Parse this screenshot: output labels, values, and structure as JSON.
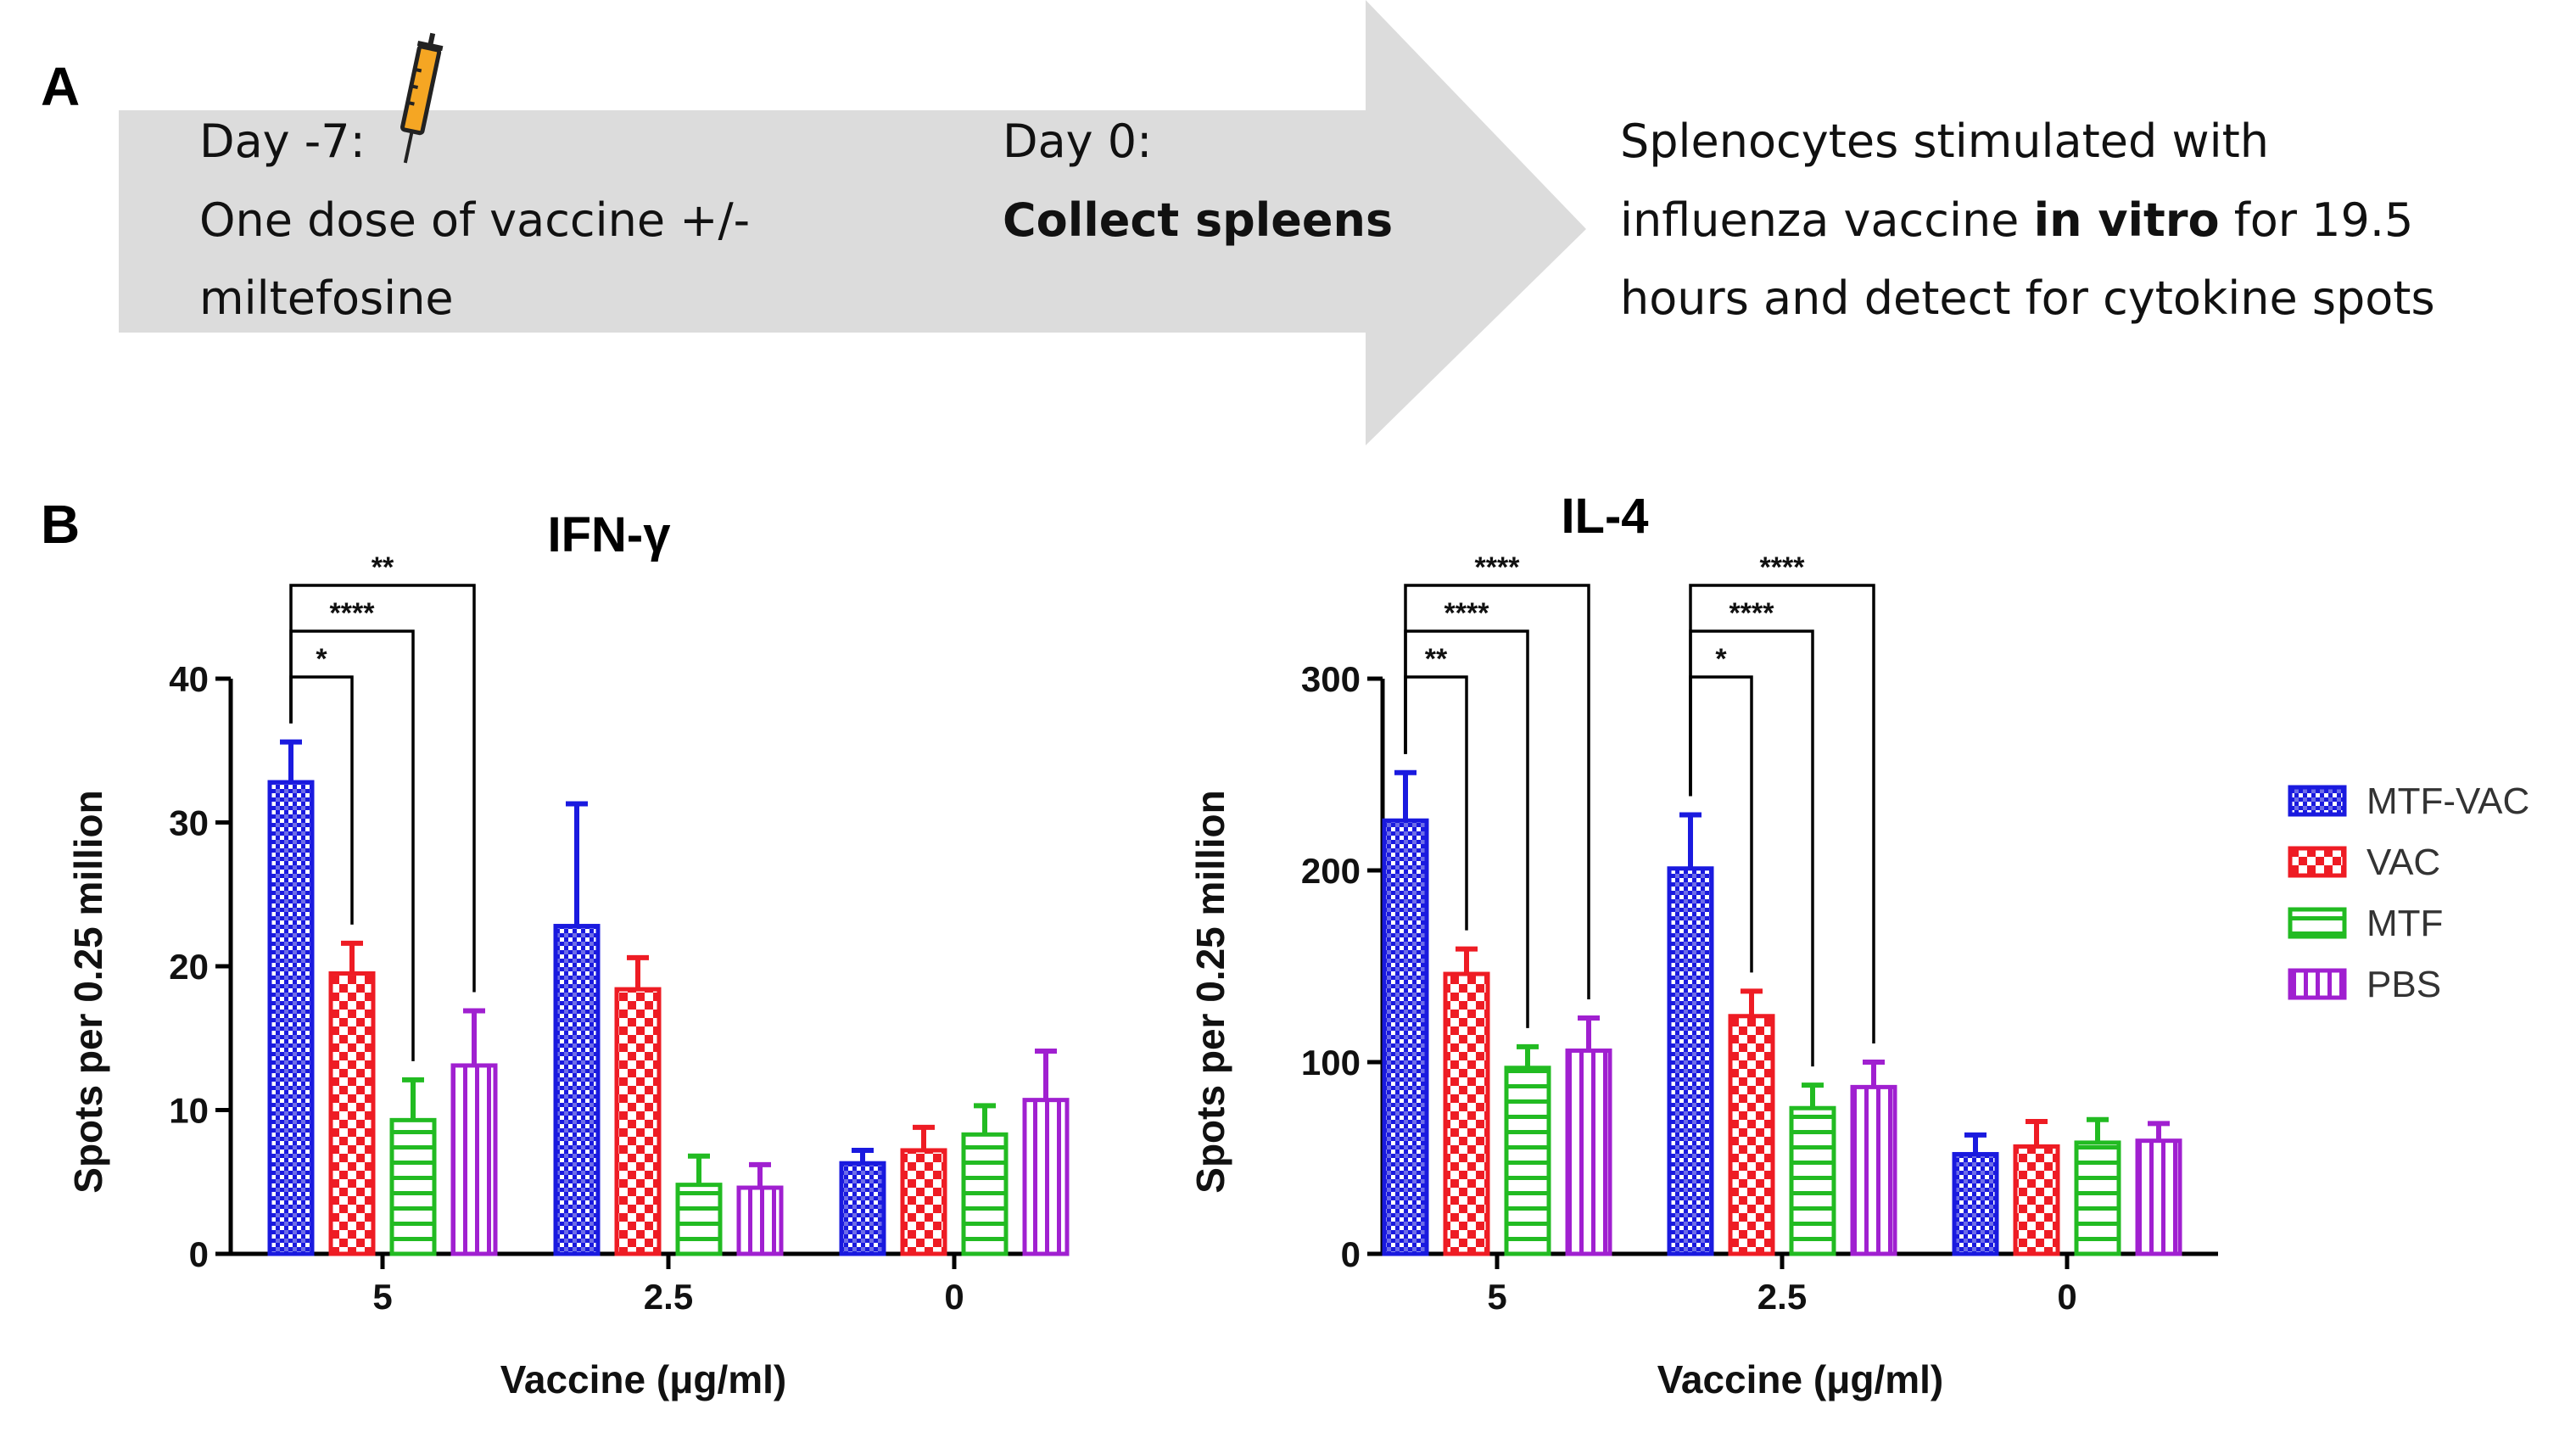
{
  "panel_a": {
    "letter": "A",
    "step1_line1": "Day -7:",
    "step1_line2": "One dose of vaccine +/-",
    "step1_line3": "miltefosine",
    "step2_line1": "Day 0:",
    "step2_line2": "Collect spleens",
    "step3_line1": "Splenocytes stimulated with",
    "step3_line2_a": "influenza vaccine ",
    "step3_line2_b": "in vitro",
    "step3_line2_c": " for 19.5",
    "step3_line3": "hours and detect for cytokine spots",
    "syringe_icon": "syringe-icon"
  },
  "panel_b": {
    "letter": "B"
  },
  "legend": {
    "items": [
      {
        "label": "MTF-VAC",
        "color": "#1a1adf",
        "pattern": "dots"
      },
      {
        "label": "VAC",
        "color": "#ee1c24",
        "pattern": "checker"
      },
      {
        "label": "MTF",
        "color": "#22bb22",
        "pattern": "hstripes"
      },
      {
        "label": "PBS",
        "color": "#a020d0",
        "pattern": "vstripes"
      }
    ]
  },
  "chart_data": [
    {
      "type": "bar",
      "title": "IFN-γ",
      "xlabel": "Vaccine (μg/ml)",
      "ylabel": "Spots per 0.25 million",
      "categories": [
        "5",
        "2.5",
        "0"
      ],
      "ylim": [
        0,
        40
      ],
      "yticks": [
        0,
        10,
        20,
        30,
        40
      ],
      "series": [
        {
          "name": "MTF-VAC",
          "values": [
            32.8,
            22.8,
            6.3
          ],
          "errors": [
            2.8,
            8.5,
            0.9
          ]
        },
        {
          "name": "VAC",
          "values": [
            19.5,
            18.4,
            7.2
          ],
          "errors": [
            2.1,
            2.2,
            1.6
          ]
        },
        {
          "name": "MTF",
          "values": [
            9.3,
            4.8,
            8.3
          ],
          "errors": [
            2.8,
            2.0,
            2.0
          ]
        },
        {
          "name": "PBS",
          "values": [
            13.1,
            4.6,
            10.7
          ],
          "errors": [
            3.8,
            1.6,
            3.4
          ]
        }
      ],
      "significance": [
        {
          "category": 0,
          "from": 0,
          "to": 1,
          "label": "*"
        },
        {
          "category": 0,
          "from": 0,
          "to": 2,
          "label": "****"
        },
        {
          "category": 0,
          "from": 0,
          "to": 3,
          "label": "**"
        }
      ]
    },
    {
      "type": "bar",
      "title": "IL-4",
      "xlabel": "Vaccine (μg/ml)",
      "ylabel": "Spots per 0.25 million",
      "categories": [
        "5",
        "2.5",
        "0"
      ],
      "ylim": [
        0,
        300
      ],
      "yticks": [
        0,
        100,
        200,
        300
      ],
      "series": [
        {
          "name": "MTF-VAC",
          "values": [
            226,
            201,
            52
          ],
          "errors": [
            25,
            28,
            10
          ]
        },
        {
          "name": "VAC",
          "values": [
            146,
            124,
            56
          ],
          "errors": [
            13,
            13,
            13
          ]
        },
        {
          "name": "MTF",
          "values": [
            97,
            76,
            58
          ],
          "errors": [
            11,
            12,
            12
          ]
        },
        {
          "name": "PBS",
          "values": [
            106,
            87,
            59
          ],
          "errors": [
            17,
            13,
            9
          ]
        }
      ],
      "significance": [
        {
          "category": 0,
          "from": 0,
          "to": 1,
          "label": "**"
        },
        {
          "category": 0,
          "from": 0,
          "to": 2,
          "label": "****"
        },
        {
          "category": 0,
          "from": 0,
          "to": 3,
          "label": "****"
        },
        {
          "category": 1,
          "from": 0,
          "to": 1,
          "label": "*"
        },
        {
          "category": 1,
          "from": 0,
          "to": 2,
          "label": "****"
        },
        {
          "category": 1,
          "from": 0,
          "to": 3,
          "label": "****"
        }
      ]
    }
  ]
}
